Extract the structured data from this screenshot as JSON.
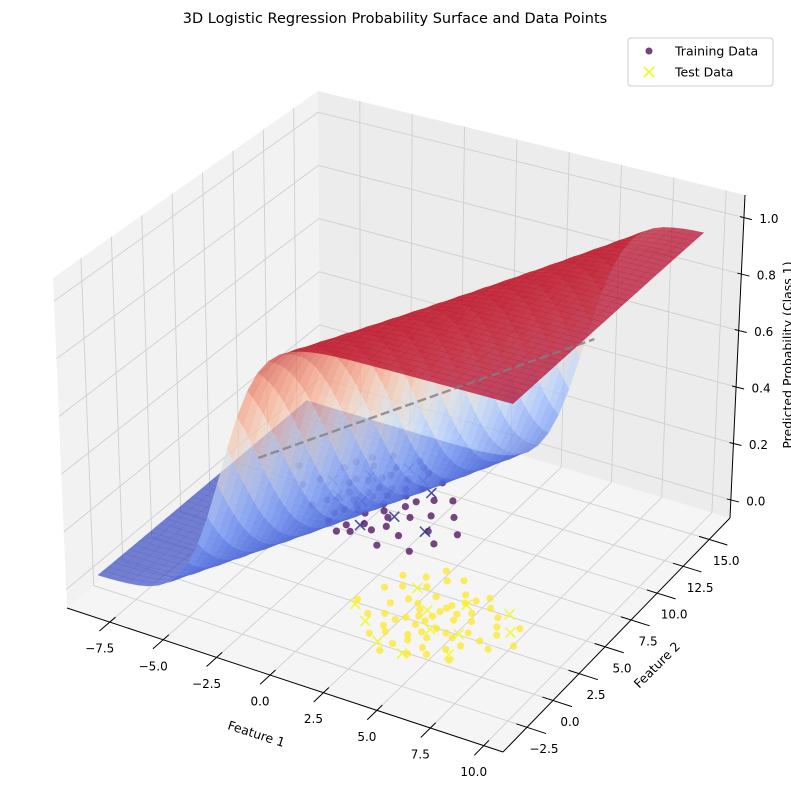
{
  "chart_data": {
    "type": "scatter3d+surface",
    "title": "3D Logistic Regression Probability Surface and Data Points",
    "xlabel": "Feature 1",
    "ylabel": "Feature 2",
    "zlabel": "Predicted Probability (Class 1)",
    "xlim": [
      -9.5,
      10.9
    ],
    "ylim": [
      -4.8,
      17.0
    ],
    "zlim": [
      -0.064,
      1.08
    ],
    "grid": true,
    "legend_position": "top-right",
    "x_ticks": [
      -7.5,
      -5.0,
      -2.5,
      0.0,
      2.5,
      5.0,
      7.5,
      10.0
    ],
    "x_tick_labels": [
      "−7.5",
      "−5.0",
      "−2.5",
      "0.0",
      "2.5",
      "5.0",
      "7.5",
      "10.0"
    ],
    "y_ticks": [
      -2.5,
      0.0,
      2.5,
      5.0,
      7.5,
      10.0,
      12.5,
      15.0
    ],
    "y_tick_labels": [
      "−2.5",
      "0.0",
      "2.5",
      "5.0",
      "7.5",
      "10.0",
      "12.5",
      "15.0"
    ],
    "z_ticks": [
      0.0,
      0.2,
      0.4,
      0.6,
      0.8,
      1.0
    ],
    "z_tick_labels": [
      "0.0",
      "0.2",
      "0.4",
      "0.6",
      "0.8",
      "1.0"
    ],
    "surface": {
      "function": "sigmoid",
      "coef": [
        1.104,
        -0.468
      ],
      "intercept": 2.04,
      "x_range": [
        -9,
        10
      ],
      "y_range": [
        -3,
        15
      ],
      "colormap": "coolwarm",
      "alpha": 0.7
    },
    "decision_boundary": {
      "x": [
        -2.36,
        4.72
      ],
      "y": [
        -1.2,
        15.5
      ],
      "z": 0.5,
      "style": "dashed",
      "color": "#808080"
    },
    "legend": [
      {
        "label": "Training Data",
        "marker": "circle",
        "color": "#440154"
      },
      {
        "label": "Test Data",
        "marker": "x",
        "color": "#f0f921"
      }
    ],
    "series": [
      {
        "name": "Training Data",
        "class_colors": {
          "0": "#440154",
          "1": "#fde725"
        },
        "z": 0,
        "class0": [
          [
            -2.6,
            9.3
          ],
          [
            -1.2,
            8.1
          ],
          [
            -3.9,
            10.2
          ],
          [
            -2.0,
            11.4
          ],
          [
            -4.1,
            8.0
          ],
          [
            -0.8,
            9.9
          ],
          [
            -3.3,
            7.2
          ],
          [
            -1.7,
            10.6
          ],
          [
            -2.9,
            12.0
          ],
          [
            -0.4,
            8.6
          ],
          [
            -3.6,
            9.1
          ],
          [
            -2.2,
            7.9
          ],
          [
            -1.5,
            12.3
          ],
          [
            -4.8,
            10.8
          ],
          [
            -2.7,
            10.1
          ],
          [
            -0.9,
            7.4
          ],
          [
            -3.1,
            8.6
          ],
          [
            -1.9,
            9.0
          ],
          [
            -5.2,
            9.4
          ],
          [
            0.3,
            9.2
          ],
          [
            -2.4,
            6.6
          ],
          [
            -3.8,
            11.6
          ],
          [
            -1.1,
            11.0
          ],
          [
            -2.8,
            8.3
          ],
          [
            -0.2,
            10.4
          ],
          [
            -4.4,
            7.3
          ],
          [
            -1.6,
            8.5
          ],
          [
            -3.0,
            10.9
          ],
          [
            -2.1,
            9.7
          ],
          [
            0.8,
            8.0
          ],
          [
            -3.5,
            12.8
          ],
          [
            -2.5,
            5.9
          ],
          [
            -1.3,
            6.8
          ],
          [
            -4.0,
            9.8
          ],
          [
            -0.6,
            11.9
          ],
          [
            -2.9,
            9.5
          ],
          [
            -1.8,
            7.1
          ],
          [
            -3.2,
            6.5
          ],
          [
            1.2,
            9.6
          ],
          [
            -2.3,
            13.0
          ],
          [
            -5.6,
            8.6
          ],
          [
            -0.1,
            7.0
          ],
          [
            -2.6,
            8.0
          ],
          [
            -1.4,
            10.1
          ],
          [
            -3.7,
            8.4
          ],
          [
            0.5,
            10.8
          ],
          [
            -4.6,
            11.5
          ],
          [
            -2.0,
            6.2
          ],
          [
            -1.0,
            9.3
          ],
          [
            -3.4,
            10.4
          ],
          [
            2.0,
            8.4
          ],
          [
            -2.8,
            11.3
          ],
          [
            -6.5,
            9.9
          ],
          [
            -0.5,
            5.8
          ],
          [
            -1.9,
            12.6
          ],
          [
            -3.1,
            7.7
          ],
          [
            1.5,
            7.2
          ],
          [
            -2.2,
            10.3
          ],
          [
            -4.2,
            12.2
          ],
          [
            0.9,
            6.1
          ]
        ],
        "class1": [
          [
            4.2,
            1.9
          ],
          [
            5.5,
            3.0
          ],
          [
            3.0,
            0.8
          ],
          [
            4.8,
            0.2
          ],
          [
            2.7,
            2.6
          ],
          [
            6.1,
            1.5
          ],
          [
            3.6,
            3.4
          ],
          [
            5.0,
            -0.6
          ],
          [
            4.4,
            2.8
          ],
          [
            3.3,
            1.2
          ],
          [
            5.8,
            2.4
          ],
          [
            4.0,
            0.0
          ],
          [
            2.2,
            1.9
          ],
          [
            6.6,
            3.3
          ],
          [
            4.6,
            4.2
          ],
          [
            3.8,
            -1.0
          ],
          [
            5.3,
            1.0
          ],
          [
            2.9,
            3.9
          ],
          [
            4.1,
            1.4
          ],
          [
            7.2,
            2.0
          ],
          [
            3.5,
            2.1
          ],
          [
            5.9,
            -0.2
          ],
          [
            1.8,
            0.6
          ],
          [
            4.9,
            3.6
          ],
          [
            3.1,
            -0.3
          ],
          [
            6.3,
            0.4
          ],
          [
            4.3,
            2.4
          ],
          [
            2.5,
            4.6
          ],
          [
            5.6,
            4.5
          ],
          [
            3.9,
            0.9
          ],
          [
            7.4,
            0.8
          ],
          [
            4.7,
            -1.4
          ],
          [
            1.4,
            2.9
          ],
          [
            5.1,
            2.1
          ],
          [
            3.4,
            4.8
          ],
          [
            6.8,
            1.2
          ],
          [
            2.6,
            -0.8
          ],
          [
            4.5,
            3.1
          ],
          [
            5.4,
            -1.0
          ],
          [
            3.7,
            1.6
          ],
          [
            0.9,
            1.4
          ],
          [
            6.0,
            3.8
          ],
          [
            4.0,
            5.2
          ],
          [
            3.2,
            2.5
          ],
          [
            5.7,
            0.8
          ],
          [
            2.0,
            3.4
          ],
          [
            4.8,
            1.1
          ],
          [
            7.8,
            3.0
          ],
          [
            3.6,
            -1.8
          ],
          [
            5.2,
            4.0
          ],
          [
            2.4,
            1.0
          ],
          [
            6.4,
            -0.9
          ],
          [
            4.4,
            0.5
          ],
          [
            1.6,
            4.2
          ],
          [
            5.0,
            2.6
          ],
          [
            3.0,
            5.5
          ],
          [
            6.9,
            2.6
          ],
          [
            4.2,
            -0.4
          ],
          [
            2.8,
            0.1
          ],
          [
            8.2,
            1.6
          ]
        ]
      },
      {
        "name": "Test Data",
        "class_colors": {
          "0": "#31348f",
          "1": "#f0f921"
        },
        "z": 0,
        "class0": [
          [
            -3.5,
            10.8
          ],
          [
            -1.4,
            11.6
          ],
          [
            -0.6,
            10.9
          ],
          [
            -2.8,
            8.7
          ],
          [
            -3.9,
            8.6
          ],
          [
            0.7,
            7.9
          ],
          [
            -1.9,
            6.9
          ],
          [
            -2.4,
            12.2
          ],
          [
            -4.7,
            9.6
          ],
          [
            -1.0,
            8.3
          ]
        ],
        "class1": [
          [
            2.0,
            0.0
          ],
          [
            5.0,
            3.5
          ],
          [
            3.2,
            -1.2
          ],
          [
            6.9,
            3.8
          ],
          [
            4.5,
            -1.5
          ],
          [
            1.0,
            1.0
          ],
          [
            5.8,
            1.2
          ],
          [
            3.8,
            2.2
          ],
          [
            7.6,
            2.5
          ],
          [
            2.6,
            3.6
          ],
          [
            4.6,
            0.9
          ],
          [
            6.2,
            -0.5
          ]
        ]
      }
    ]
  }
}
